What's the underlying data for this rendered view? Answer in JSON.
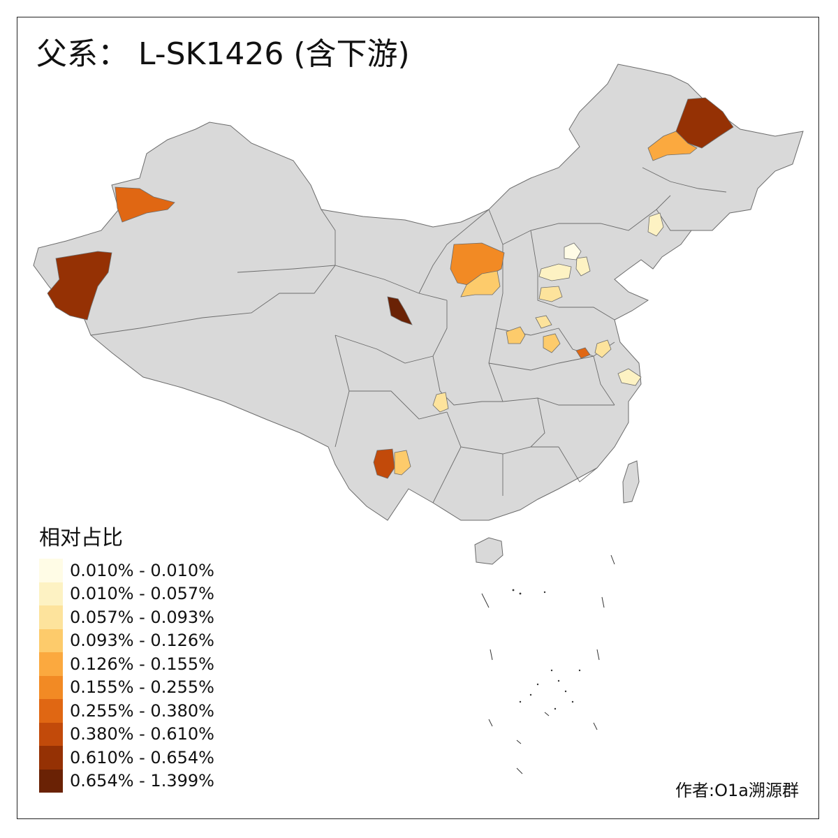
{
  "title": "父系： L-SK1426 (含下游)",
  "legend": {
    "title": "相对占比",
    "items": [
      {
        "label": "0.010% - 0.010%",
        "color": "#fffce6"
      },
      {
        "label": "0.010% - 0.057%",
        "color": "#fdf2c3"
      },
      {
        "label": "0.057% - 0.093%",
        "color": "#fde39c"
      },
      {
        "label": "0.093% - 0.126%",
        "color": "#fdcb6b"
      },
      {
        "label": "0.126% - 0.155%",
        "color": "#fba93f"
      },
      {
        "label": "0.155% - 0.255%",
        "color": "#f28a24"
      },
      {
        "label": "0.255% - 0.380%",
        "color": "#e06713"
      },
      {
        "label": "0.380% - 0.610%",
        "color": "#c24a0a"
      },
      {
        "label": "0.610% - 0.654%",
        "color": "#953104"
      },
      {
        "label": "0.654% - 1.399%",
        "color": "#6a2205"
      }
    ]
  },
  "map": {
    "base_color": "#d9d9d9",
    "border_color": "#6b6b6b"
  },
  "credit": "作者:O1a溯源群"
}
